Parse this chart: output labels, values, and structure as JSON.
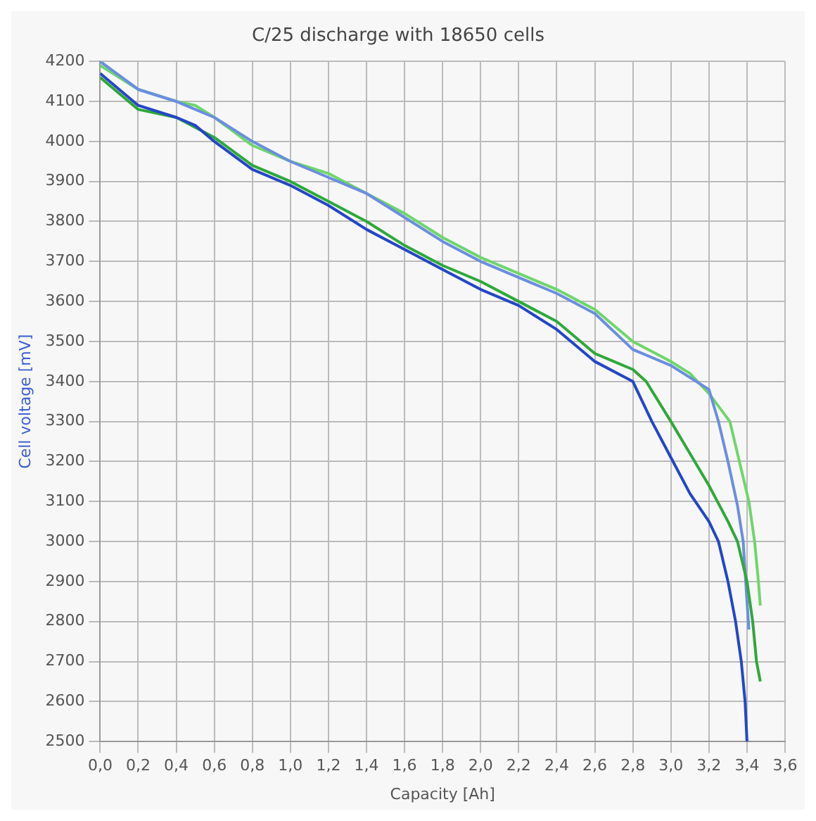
{
  "chart_data": {
    "type": "line",
    "title": "C/25 discharge with 18650 cells",
    "xlabel": "Capacity [Ah]",
    "ylabel": "Cell voltage [mV]",
    "xlim": [
      0,
      3.6
    ],
    "ylim": [
      2500,
      4200
    ],
    "xticks": [
      {
        "value": 0,
        "label": "0,0"
      },
      {
        "value": 0.2,
        "label": "0,2"
      },
      {
        "value": 0.4,
        "label": "0,4"
      },
      {
        "value": 0.6,
        "label": "0,6"
      },
      {
        "value": 0.8,
        "label": "0,8"
      },
      {
        "value": 1,
        "label": "1,0"
      },
      {
        "value": 1.2,
        "label": "1,2"
      },
      {
        "value": 1.4,
        "label": "1,4"
      },
      {
        "value": 1.6,
        "label": "1,6"
      },
      {
        "value": 1.8,
        "label": "1,8"
      },
      {
        "value": 2,
        "label": "2,0"
      },
      {
        "value": 2.2,
        "label": "2,2"
      },
      {
        "value": 2.4,
        "label": "2,4"
      },
      {
        "value": 2.6,
        "label": "2,6"
      },
      {
        "value": 2.8,
        "label": "2,8"
      },
      {
        "value": 3,
        "label": "3,0"
      },
      {
        "value": 3.2,
        "label": "3,2"
      },
      {
        "value": 3.4,
        "label": "3,4"
      },
      {
        "value": 3.6,
        "label": "3,6"
      }
    ],
    "yticks": [
      2500,
      2600,
      2700,
      2800,
      2900,
      3000,
      3100,
      3200,
      3300,
      3400,
      3500,
      3600,
      3700,
      3800,
      3900,
      4000,
      4100,
      4200
    ],
    "grid": true,
    "legend": false,
    "marker": "none",
    "line_style": "solid",
    "series": [
      {
        "color": "#2446c8",
        "x": [
          0,
          0.2,
          0.4,
          0.5,
          0.6,
          0.8,
          1.0,
          1.2,
          1.4,
          1.6,
          1.8,
          2.0,
          2.2,
          2.4,
          2.6,
          2.8,
          2.9,
          3.0,
          3.1,
          3.2,
          3.25,
          3.3,
          3.34,
          3.37,
          3.39,
          3.4
        ],
        "values": [
          4170,
          4090,
          4060,
          4040,
          4000,
          3930,
          3890,
          3840,
          3780,
          3730,
          3680,
          3630,
          3590,
          3530,
          3450,
          3400,
          3300,
          3210,
          3120,
          3050,
          3000,
          2900,
          2800,
          2700,
          2600,
          2500
        ]
      },
      {
        "color": "#2fa83a",
        "x": [
          0,
          0.2,
          0.4,
          0.6,
          0.8,
          1.0,
          1.2,
          1.4,
          1.6,
          1.8,
          2.0,
          2.2,
          2.4,
          2.6,
          2.8,
          2.87,
          3.0,
          3.1,
          3.2,
          3.3,
          3.35,
          3.4,
          3.43,
          3.45,
          3.47
        ],
        "values": [
          4160,
          4080,
          4060,
          4010,
          3940,
          3900,
          3850,
          3800,
          3740,
          3690,
          3650,
          3600,
          3550,
          3470,
          3430,
          3400,
          3300,
          3220,
          3140,
          3050,
          3000,
          2900,
          2800,
          2700,
          2650
        ]
      },
      {
        "color": "#6b8ee0",
        "x": [
          0,
          0.2,
          0.4,
          0.6,
          0.8,
          1.0,
          1.2,
          1.4,
          1.6,
          1.8,
          2.0,
          2.2,
          2.4,
          2.6,
          2.8,
          3.0,
          3.1,
          3.2,
          3.25,
          3.3,
          3.35,
          3.38,
          3.4,
          3.41
        ],
        "values": [
          4200,
          4130,
          4100,
          4060,
          4000,
          3950,
          3910,
          3870,
          3810,
          3750,
          3700,
          3660,
          3620,
          3570,
          3480,
          3440,
          3410,
          3380,
          3300,
          3200,
          3090,
          3000,
          2850,
          2780
        ]
      },
      {
        "color": "#6fd66a",
        "x": [
          0,
          0.2,
          0.4,
          0.5,
          0.6,
          0.8,
          1.0,
          1.2,
          1.4,
          1.6,
          1.8,
          2.0,
          2.2,
          2.4,
          2.6,
          2.8,
          3.0,
          3.1,
          3.2,
          3.31,
          3.41,
          3.44,
          3.46,
          3.47
        ],
        "values": [
          4190,
          4130,
          4100,
          4090,
          4060,
          3990,
          3950,
          3920,
          3870,
          3820,
          3760,
          3710,
          3670,
          3630,
          3580,
          3500,
          3450,
          3420,
          3370,
          3300,
          3100,
          3000,
          2900,
          2840
        ]
      }
    ]
  }
}
